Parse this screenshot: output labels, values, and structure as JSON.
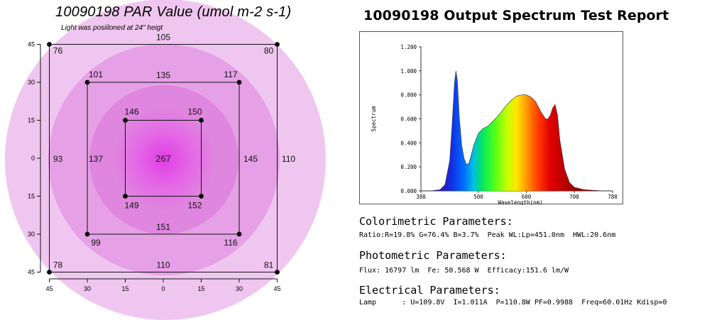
{
  "par_map": {
    "title": "10090198 PAR Value (umol m-2 s-1)",
    "subtitle": "Light was posiiloned at 24\" heigt",
    "center": "267",
    "points": [
      {
        "label": "76",
        "x": -45,
        "y": 45
      },
      {
        "label": "105",
        "x": 0,
        "y": 45
      },
      {
        "label": "80",
        "x": 45,
        "y": 45
      },
      {
        "label": "101",
        "x": -30,
        "y": 30
      },
      {
        "label": "135",
        "x": 0,
        "y": 30
      },
      {
        "label": "117",
        "x": 30,
        "y": 30
      },
      {
        "label": "146",
        "x": -15,
        "y": 15
      },
      {
        "label": "150",
        "x": 15,
        "y": 15
      },
      {
        "label": "93",
        "x": -45,
        "y": 0
      },
      {
        "label": "137",
        "x": -30,
        "y": 0
      },
      {
        "label": "145",
        "x": 30,
        "y": 0
      },
      {
        "label": "110",
        "x": 45,
        "y": 0
      },
      {
        "label": "149",
        "x": -15,
        "y": -15
      },
      {
        "label": "152",
        "x": 15,
        "y": -15
      },
      {
        "label": "99",
        "x": -30,
        "y": -30
      },
      {
        "label": "151",
        "x": 0,
        "y": -30
      },
      {
        "label": "116",
        "x": 30,
        "y": -30
      },
      {
        "label": "78",
        "x": -45,
        "y": -45
      },
      {
        "label": "110",
        "x": 0,
        "y": -45
      },
      {
        "label": "81",
        "x": 45,
        "y": -45
      }
    ],
    "y_ticks": [
      "45",
      "30",
      "15",
      "0",
      "15",
      "30",
      "45"
    ],
    "x_ticks": [
      "45",
      "30",
      "15",
      "0",
      "15",
      "30",
      "45"
    ],
    "colors": {
      "outer": "#efc6ef",
      "middle": "#e6a1e6",
      "inner": "#df86df",
      "core": "#e23ee6"
    }
  },
  "report": {
    "title": "10090198 Output Spectrum Test Report",
    "colorimetric_heading": "Colorimetric Parameters:",
    "colorimetric_line": "Ratio:R=19.8% G=76.4% B=3.7%  Peak WL:Lp=451.0nm  HWL:20.6nm",
    "photometric_heading": "Photometric Parameters:",
    "photometric_line": "Flux: 16797 lm  Fe: 50.568 W  Efficacy:151.6 lm/W",
    "electrical_heading": "Electrical Parameters:",
    "electrical_line": "Lamp      : U=109.8V  I=1.011A  P=110.8W PF=0.9988  Freq=60.01Hz Kdisp=0"
  },
  "chart_data": {
    "type": "area",
    "title": "",
    "xlabel": "Wavelength(nm)",
    "ylabel": "Spectrum",
    "xlim": [
      380,
      780
    ],
    "ylim": [
      0,
      1.2
    ],
    "x_ticks": [
      "380",
      "500",
      "600",
      "700",
      "780"
    ],
    "y_ticks": [
      "0.000",
      "0.200",
      "0.400",
      "0.600",
      "0.800",
      "1.000",
      "1.200"
    ],
    "grid": false,
    "x": [
      400,
      420,
      430,
      440,
      445,
      450,
      453,
      456,
      460,
      465,
      470,
      475,
      480,
      485,
      490,
      500,
      510,
      520,
      530,
      540,
      550,
      560,
      570,
      580,
      590,
      600,
      610,
      620,
      630,
      640,
      645,
      650,
      655,
      660,
      665,
      670,
      680,
      690,
      700,
      720,
      740,
      760,
      780
    ],
    "values": [
      0.0,
      0.01,
      0.05,
      0.25,
      0.55,
      0.9,
      1.0,
      0.92,
      0.62,
      0.38,
      0.27,
      0.22,
      0.23,
      0.3,
      0.38,
      0.48,
      0.52,
      0.54,
      0.58,
      0.62,
      0.67,
      0.72,
      0.76,
      0.79,
      0.8,
      0.8,
      0.78,
      0.74,
      0.66,
      0.6,
      0.6,
      0.63,
      0.69,
      0.72,
      0.63,
      0.42,
      0.18,
      0.07,
      0.03,
      0.01,
      0.005,
      0.0,
      0.0
    ]
  }
}
